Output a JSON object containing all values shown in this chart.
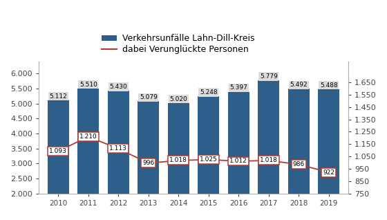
{
  "years": [
    2010,
    2011,
    2012,
    2013,
    2014,
    2015,
    2016,
    2017,
    2018,
    2019
  ],
  "accidents": [
    5112,
    5510,
    5430,
    5079,
    5020,
    5248,
    5397,
    5779,
    5492,
    5488
  ],
  "injured": [
    1093,
    1210,
    1113,
    996,
    1018,
    1025,
    1012,
    1018,
    986,
    922
  ],
  "bar_color": "#2E5F8A",
  "line_color": "#B03A2E",
  "legend_bar_label": "Verkehrsunfälle Lahn-Dill-Kreis",
  "legend_line_label": "dabei Verunglückte Personen",
  "ylim_left": [
    2000,
    6400
  ],
  "ylim_right": [
    750,
    1817
  ],
  "yticks_left": [
    2000,
    2500,
    3000,
    3500,
    4000,
    4500,
    5000,
    5500,
    6000
  ],
  "yticks_right": [
    750,
    850,
    950,
    1050,
    1150,
    1250,
    1350,
    1450,
    1550,
    1650
  ],
  "background_color": "#FFFFFF"
}
